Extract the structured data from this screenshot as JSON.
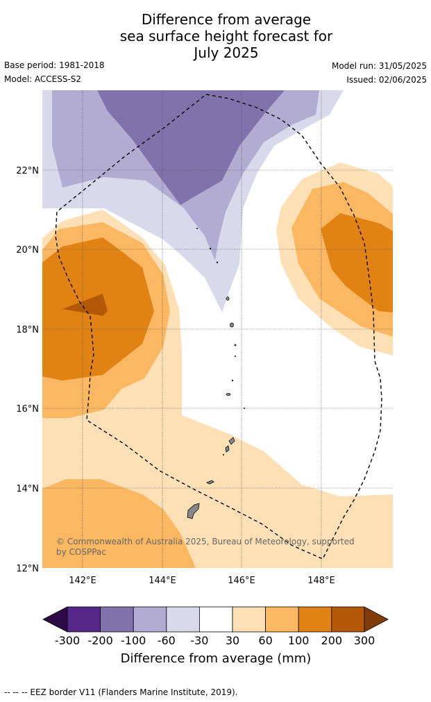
{
  "title": {
    "line1": "Difference from average",
    "line2": "sea surface height forecast for",
    "line3": "July 2025"
  },
  "meta": {
    "base_period": "Base period: 1981-2018",
    "model": "Model: ACCESS-S2",
    "model_run": "Model run: 31/05/2025",
    "issued": "Issued: 02/06/2025"
  },
  "map": {
    "lon_range": [
      141.0,
      149.8
    ],
    "lat_range": [
      12.0,
      24.0
    ],
    "grid": true,
    "x_ticks": [
      {
        "value": 142,
        "label": "142°E"
      },
      {
        "value": 144,
        "label": "144°E"
      },
      {
        "value": 146,
        "label": "146°E"
      },
      {
        "value": 148,
        "label": "148°E"
      }
    ],
    "y_ticks": [
      {
        "value": 22,
        "label": "22°N"
      },
      {
        "value": 20,
        "label": "20°N"
      },
      {
        "value": 18,
        "label": "18°N"
      },
      {
        "value": 16,
        "label": "16°N"
      },
      {
        "value": 14,
        "label": "14°N"
      },
      {
        "value": 12,
        "label": "12°N"
      }
    ],
    "copyright_line1": "© Commonwealth of Australia 2025, Bureau of Meteorology, supported",
    "copyright_line2": "by COSPPac",
    "colors": {
      "neg_300": "#2d0a45",
      "neg_200": "#542788",
      "neg_100": "#8073ac",
      "neg_60": "#b2abd2",
      "neg_30": "#d8daeb",
      "zero": "#ffffff",
      "pos_30": "#fee0b6",
      "pos_60": "#fbb761",
      "pos_100": "#e08214",
      "pos_200": "#b35806",
      "pos_300": "#7f3b08",
      "land": "#888888"
    }
  },
  "colorbar": {
    "labels": [
      "-300",
      "-200",
      "-100",
      "-60",
      "-30",
      "30",
      "60",
      "100",
      "200",
      "300"
    ],
    "title": "Difference from average (mm)"
  },
  "footnote": "--  --  -- EEZ border V11 (Flanders Marine Institute, 2019)."
}
